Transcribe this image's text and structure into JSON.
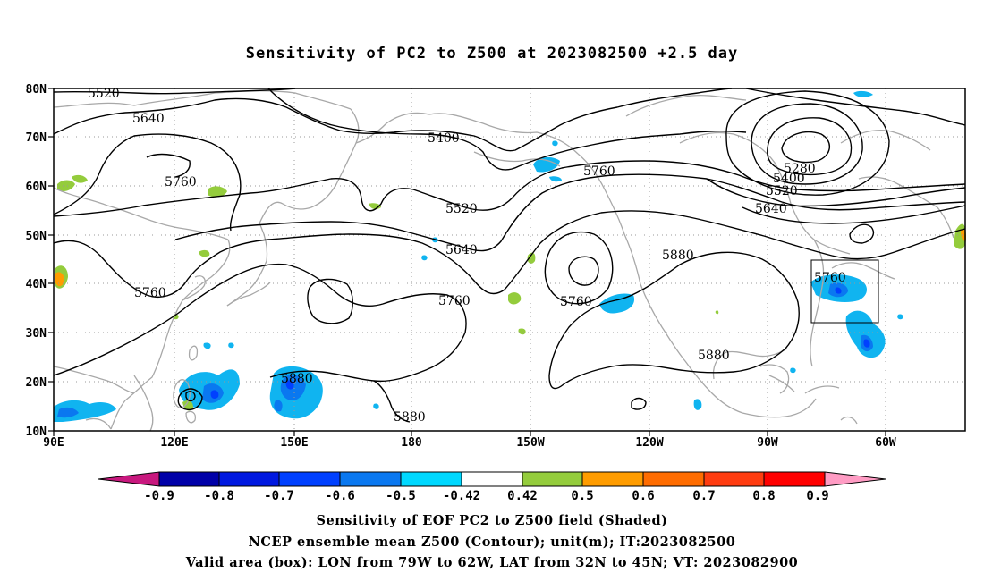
{
  "title": "Sensitivity of PC2 to Z500 at 2023082500 +2.5 day",
  "captions": {
    "line1": "Sensitivity of EOF PC2 to Z500 field (Shaded)",
    "line2": "NCEP ensemble mean Z500 (Contour); unit(m); IT:2023082500",
    "line3": "Valid area (box): LON from 79W to 62W, LAT from 32N to 45N; VT: 2023082900"
  },
  "axes": {
    "lat_labels": [
      "80N",
      "70N",
      "60N",
      "50N",
      "40N",
      "30N",
      "20N",
      "10N"
    ],
    "lon_labels": [
      "90E",
      "120E",
      "150E",
      "180",
      "150W",
      "120W",
      "90W",
      "60W"
    ]
  },
  "contour_labels": {
    "c5520_a": "5520",
    "c5640_a": "5640",
    "c5760_a": "5760",
    "c5400_a": "5400",
    "c5760_b": "5760",
    "c5520_b": "5520",
    "c5640_b": "5640",
    "c5760_c": "5760",
    "c5760_d": "5760",
    "c5760_e": "5760",
    "c5880_a": "5880",
    "c5880_b": "5880",
    "c5880_c": "5880",
    "c5880_d": "5880",
    "c5280": "5280",
    "c5400_b": "5400",
    "c5520_c": "5520",
    "c5640_c": "5640",
    "c5760_f": "5760"
  },
  "colorbar": {
    "labels": [
      "-0.9",
      "-0.8",
      "-0.7",
      "-0.6",
      "-0.5",
      "-0.42",
      "0.42",
      "0.5",
      "0.6",
      "0.7",
      "0.8",
      "0.9"
    ],
    "colors": [
      "#c8187e",
      "#0000a8",
      "#0018e0",
      "#0040ff",
      "#0a78f0",
      "#10b4f0",
      "#00d8ff",
      "#ffffff",
      "#94cc3c",
      "#ff9c00",
      "#ff6c00",
      "#ff3c10",
      "#ff0000",
      "#ff9cc4"
    ]
  },
  "valid_box": {
    "lon_west": "79W",
    "lon_east": "62W",
    "lat_south": "32N",
    "lat_north": "45N"
  }
}
